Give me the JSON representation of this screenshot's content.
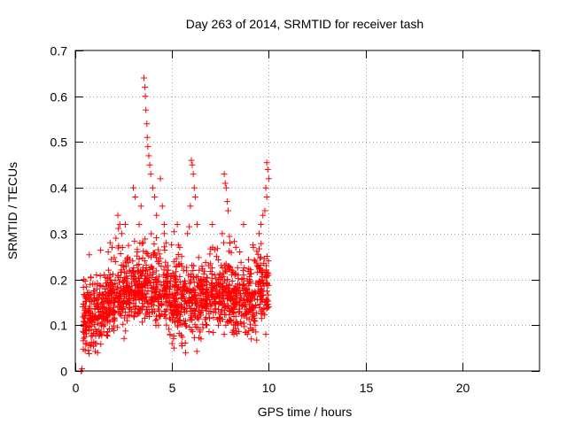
{
  "chart_data": {
    "type": "scatter",
    "title": "Day 263 of 2014, SRMTID for receiver tash",
    "xlabel": "GPS time / hours",
    "ylabel": "SRMTID / TECUs",
    "xlim": [
      0,
      24
    ],
    "ylim": [
      0,
      0.7
    ],
    "x_ticks": [
      0,
      5,
      10,
      15,
      20
    ],
    "x_tick_labels": [
      "0",
      "5",
      "10",
      "15",
      "20"
    ],
    "y_ticks": [
      0,
      0.1,
      0.2,
      0.3,
      0.4,
      0.5,
      0.6,
      0.7
    ],
    "y_tick_labels": [
      "0",
      "0.1",
      "0.2",
      "0.3",
      "0.4",
      "0.5",
      "0.6",
      "0.7"
    ],
    "grid": true,
    "marker": "+",
    "marker_color": "#ff0000",
    "data_range_hours": [
      0.3,
      10.0
    ],
    "series": [
      {
        "name": "SRMTID",
        "points": [
          [
            0.3,
            0.0
          ],
          [
            0.32,
            0.0
          ],
          [
            0.35,
            0.005
          ],
          [
            3.55,
            0.64
          ],
          [
            3.6,
            0.62
          ],
          [
            3.62,
            0.6
          ],
          [
            3.65,
            0.57
          ],
          [
            3.7,
            0.54
          ],
          [
            3.72,
            0.51
          ],
          [
            3.75,
            0.49
          ],
          [
            3.8,
            0.47
          ],
          [
            3.85,
            0.45
          ],
          [
            3.9,
            0.43
          ],
          [
            3.0,
            0.4
          ],
          [
            3.1,
            0.38
          ],
          [
            3.3,
            0.32
          ],
          [
            3.4,
            0.36
          ],
          [
            4.0,
            0.4
          ],
          [
            4.1,
            0.38
          ],
          [
            4.2,
            0.34
          ],
          [
            4.4,
            0.42
          ],
          [
            4.5,
            0.36
          ],
          [
            4.6,
            0.3
          ],
          [
            4.7,
            0.28
          ],
          [
            2.2,
            0.34
          ],
          [
            2.3,
            0.32
          ],
          [
            2.4,
            0.3
          ],
          [
            2.1,
            0.29
          ],
          [
            1.8,
            0.28
          ],
          [
            1.7,
            0.26
          ],
          [
            1.9,
            0.27
          ],
          [
            6.0,
            0.46
          ],
          [
            6.05,
            0.45
          ],
          [
            6.1,
            0.43
          ],
          [
            6.15,
            0.4
          ],
          [
            6.2,
            0.38
          ],
          [
            5.95,
            0.36
          ],
          [
            6.3,
            0.32
          ],
          [
            5.8,
            0.3
          ],
          [
            7.7,
            0.43
          ],
          [
            7.75,
            0.41
          ],
          [
            7.8,
            0.4
          ],
          [
            7.85,
            0.37
          ],
          [
            7.9,
            0.35
          ],
          [
            7.6,
            0.3
          ],
          [
            8.0,
            0.28
          ],
          [
            9.9,
            0.455
          ],
          [
            9.95,
            0.44
          ],
          [
            10.0,
            0.42
          ],
          [
            9.85,
            0.4
          ],
          [
            9.9,
            0.38
          ],
          [
            9.8,
            0.35
          ],
          [
            9.7,
            0.34
          ],
          [
            9.6,
            0.32
          ],
          [
            9.5,
            0.3
          ],
          [
            5.4,
            0.27
          ],
          [
            5.5,
            0.25
          ],
          [
            7.1,
            0.27
          ],
          [
            7.3,
            0.25
          ],
          [
            8.3,
            0.27
          ],
          [
            8.5,
            0.26
          ],
          [
            9.2,
            0.27
          ],
          [
            9.3,
            0.24
          ],
          [
            0.9,
            0.19
          ],
          [
            1.0,
            0.17
          ],
          [
            1.2,
            0.16
          ],
          [
            1.5,
            0.21
          ],
          [
            2.6,
            0.24
          ],
          [
            2.8,
            0.22
          ],
          [
            3.2,
            0.26
          ],
          [
            3.5,
            0.28
          ],
          [
            4.8,
            0.22
          ],
          [
            5.2,
            0.2
          ],
          [
            5.6,
            0.22
          ],
          [
            5.9,
            0.18
          ],
          [
            6.4,
            0.22
          ],
          [
            6.6,
            0.2
          ],
          [
            6.9,
            0.23
          ],
          [
            7.2,
            0.21
          ],
          [
            7.5,
            0.2
          ],
          [
            8.1,
            0.22
          ],
          [
            8.4,
            0.19
          ],
          [
            8.7,
            0.21
          ],
          [
            9.0,
            0.2
          ],
          [
            9.4,
            0.23
          ],
          [
            9.7,
            0.22
          ],
          [
            0.4,
            0.14
          ],
          [
            0.5,
            0.12
          ],
          [
            0.6,
            0.1
          ],
          [
            0.7,
            0.13
          ],
          [
            0.8,
            0.11
          ],
          [
            1.1,
            0.06
          ],
          [
            1.15,
            0.04
          ],
          [
            1.3,
            0.12
          ],
          [
            1.4,
            0.14
          ],
          [
            1.6,
            0.13
          ],
          [
            2.0,
            0.15
          ],
          [
            2.5,
            0.14
          ],
          [
            2.7,
            0.12
          ],
          [
            2.9,
            0.13
          ],
          [
            3.4,
            0.16
          ],
          [
            3.8,
            0.14
          ],
          [
            4.1,
            0.13
          ],
          [
            4.3,
            0.1
          ],
          [
            4.6,
            0.12
          ],
          [
            4.9,
            0.08
          ],
          [
            5.0,
            0.06
          ],
          [
            5.1,
            0.05
          ],
          [
            5.3,
            0.1
          ],
          [
            5.5,
            0.06
          ],
          [
            5.7,
            0.04
          ],
          [
            6.0,
            0.09
          ],
          [
            6.2,
            0.12
          ],
          [
            6.5,
            0.07
          ],
          [
            6.8,
            0.1
          ],
          [
            7.0,
            0.13
          ],
          [
            7.4,
            0.1
          ],
          [
            7.7,
            0.08
          ],
          [
            8.0,
            0.11
          ],
          [
            8.2,
            0.08
          ],
          [
            8.6,
            0.12
          ],
          [
            8.9,
            0.08
          ],
          [
            9.1,
            0.07
          ],
          [
            9.3,
            0.1
          ],
          [
            9.6,
            0.13
          ],
          [
            9.85,
            0.08
          ],
          [
            10.0,
            0.14
          ]
        ]
      }
    ]
  }
}
